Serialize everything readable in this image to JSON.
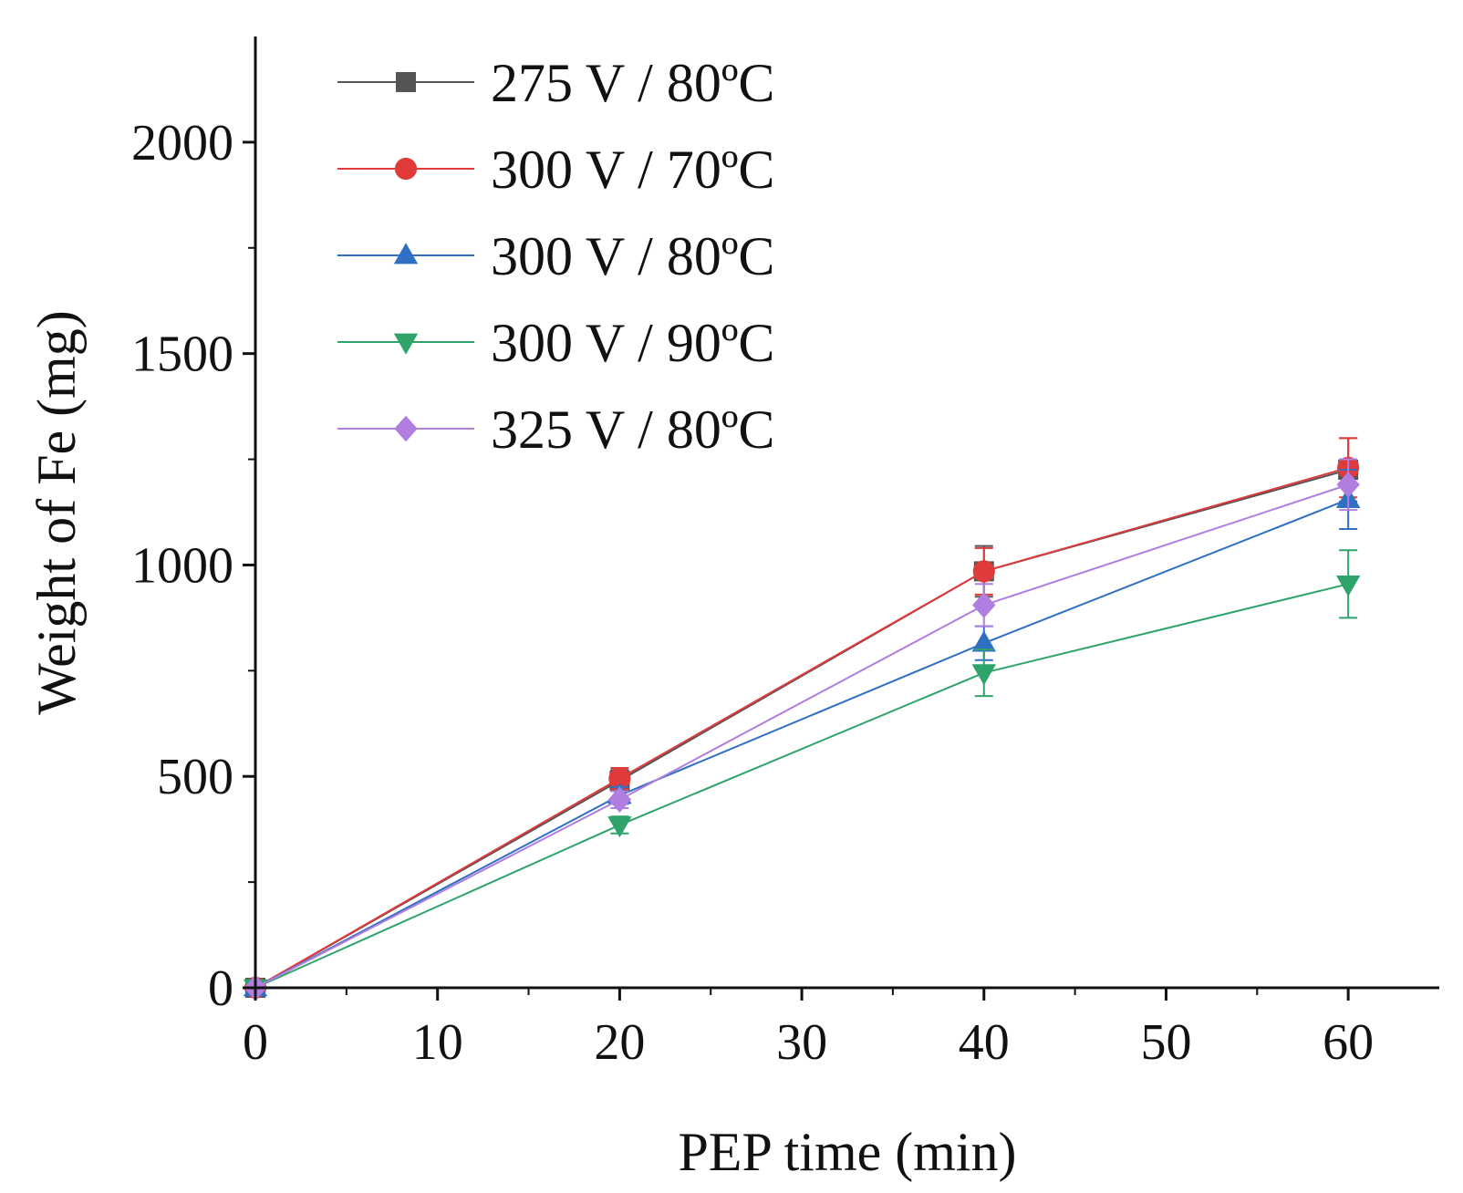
{
  "chart_data": {
    "type": "line",
    "title": "",
    "xlabel": "PEP time (min)",
    "ylabel": "Weight of Fe (mg)",
    "xlim": [
      0,
      65
    ],
    "ylim": [
      0,
      2250
    ],
    "xticks": [
      0,
      10,
      20,
      30,
      40,
      50,
      60
    ],
    "xtick_labels": [
      "0",
      "10",
      "20",
      "30",
      "40",
      "50",
      "60"
    ],
    "yticks": [
      0,
      500,
      1000,
      1500,
      2000
    ],
    "ytick_labels": [
      "0",
      "500",
      "1000",
      "1500",
      "2000"
    ],
    "grid": false,
    "legend_position": "top-left",
    "x": [
      0,
      20,
      40,
      60
    ],
    "series": [
      {
        "name": "275 V / 80ºC",
        "color": "#555555",
        "marker": "square",
        "values": [
          0,
          490,
          985,
          1225
        ],
        "errors": [
          0,
          25,
          60,
          75
        ]
      },
      {
        "name": "300 V / 70ºC",
        "color": "#e03a3a",
        "marker": "circle",
        "values": [
          0,
          495,
          985,
          1230
        ],
        "errors": [
          0,
          25,
          55,
          70
        ]
      },
      {
        "name": "300 V / 80ºC",
        "color": "#2f6fc4",
        "marker": "triangle-up",
        "values": [
          0,
          455,
          815,
          1155
        ],
        "errors": [
          0,
          20,
          40,
          70
        ]
      },
      {
        "name": "300 V / 90ºC",
        "color": "#2ea36a",
        "marker": "triangle-down",
        "values": [
          0,
          385,
          745,
          955
        ],
        "errors": [
          0,
          20,
          55,
          80
        ]
      },
      {
        "name": "325 V / 80ºC",
        "color": "#b07de0",
        "marker": "diamond",
        "values": [
          0,
          445,
          905,
          1190
        ],
        "errors": [
          0,
          20,
          50,
          60
        ]
      }
    ]
  }
}
